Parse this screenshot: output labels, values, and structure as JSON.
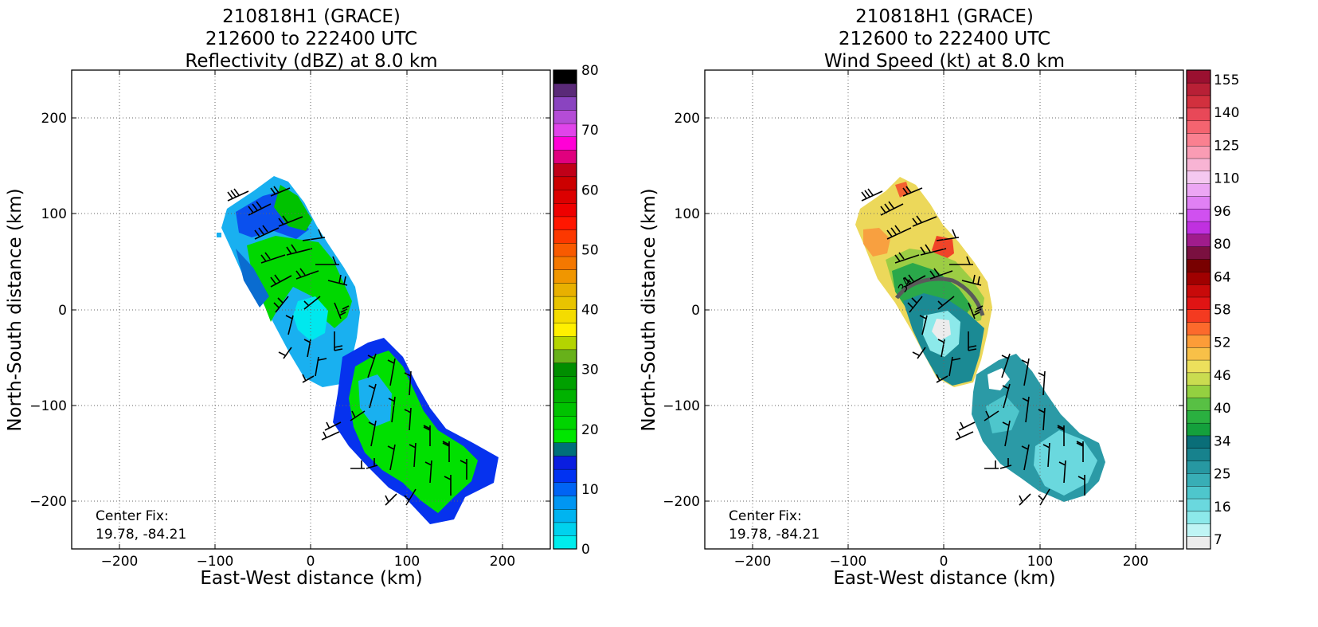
{
  "panels": [
    {
      "id": "reflectivity",
      "title_lines": [
        "210818H1 (GRACE)",
        "212600 to 222400 UTC",
        "Reflectivity (dBZ) at 8.0 km"
      ],
      "center_fix": [
        "Center Fix:",
        "19.78, -84.21"
      ],
      "colorbar": {
        "min": 0,
        "max": 80,
        "step": 2.5,
        "tick_values": [
          0,
          10,
          20,
          30,
          40,
          50,
          60,
          70,
          80
        ],
        "tick_labels": [
          "0",
          "10",
          "20",
          "30",
          "40",
          "50",
          "60",
          "70",
          "80"
        ],
        "colors": [
          "#00ecec",
          "#00d2ee",
          "#00b4f0",
          "#0096f2",
          "#0064f4",
          "#0032f2",
          "#0a1ee0",
          "#00707a",
          "#00e600",
          "#00d400",
          "#00c200",
          "#00b200",
          "#00a000",
          "#008e00",
          "#67b11a",
          "#b4d400",
          "#fff000",
          "#f4dc00",
          "#e8c400",
          "#e8b000",
          "#f09600",
          "#f47800",
          "#f85a00",
          "#fc3800",
          "#ff1600",
          "#ee0000",
          "#dc0000",
          "#cc0000",
          "#c00018",
          "#e0007e",
          "#ff00d6",
          "#e044ea",
          "#b44cd6",
          "#8a44c0",
          "#5a2a78",
          "#000000"
        ]
      }
    },
    {
      "id": "wind",
      "title_lines": [
        "210818H1 (GRACE)",
        "212600 to 222400 UTC",
        "Wind Speed (kt) at 8.0 km"
      ],
      "center_fix": [
        "Center Fix:",
        "19.78, -84.21"
      ],
      "contour_label": "34",
      "colorbar": {
        "tick_labels": [
          "7",
          "16",
          "25",
          "34",
          "40",
          "46",
          "52",
          "58",
          "64",
          "80",
          "96",
          "110",
          "125",
          "140",
          "155"
        ],
        "colors": [
          "#ececec",
          "#bff4f4",
          "#8ce9ea",
          "#6ad8de",
          "#4ec6cc",
          "#38aeb6",
          "#2798a2",
          "#17828d",
          "#0a6e78",
          "#14a03c",
          "#2ab040",
          "#58c044",
          "#94d040",
          "#cadc50",
          "#ece05c",
          "#f8c048",
          "#fc9c38",
          "#fc6a2c",
          "#f43a20",
          "#e01414",
          "#c80a0a",
          "#a00000",
          "#780000",
          "#7a1040",
          "#a01c8c",
          "#c030e0",
          "#d050f0",
          "#e080f4",
          "#eca6f4",
          "#f4c8f0",
          "#f8b4d4",
          "#fa9cb4",
          "#fa8090",
          "#f46470",
          "#e84858",
          "#d2303e",
          "#b82036",
          "#9a1030"
        ]
      }
    }
  ],
  "chart_data": [
    {
      "type": "heatmap",
      "title": "210818H1 (GRACE) 212600 to 222400 UTC Reflectivity (dBZ) at 8.0 km",
      "xlabel": "East-West distance (km)",
      "ylabel": "North-South distance (km)",
      "xlim": [
        -250,
        250
      ],
      "ylim": [
        -250,
        250
      ],
      "xticks": [
        -200,
        -100,
        0,
        100,
        200
      ],
      "yticks": [
        -200,
        -100,
        0,
        100,
        200
      ],
      "xtick_labels": [
        "−200",
        "−100",
        "0",
        "100",
        "200"
      ],
      "ytick_labels": [
        "−200",
        "−100",
        "0",
        "100",
        "200"
      ],
      "grid": true,
      "units": "dBZ",
      "colorbar_range": [
        0,
        80
      ],
      "annotation": "Center Fix:\n19.78, -84.21"
    },
    {
      "type": "heatmap",
      "title": "210818H1 (GRACE) 212600 to 222400 UTC Wind Speed (kt) at 8.0 km",
      "xlabel": "East-West distance (km)",
      "ylabel": "North-South distance (km)",
      "xlim": [
        -250,
        250
      ],
      "ylim": [
        -250,
        250
      ],
      "xticks": [
        -200,
        -100,
        0,
        100,
        200
      ],
      "yticks": [
        -200,
        -100,
        0,
        100,
        200
      ],
      "xtick_labels": [
        "−200",
        "−100",
        "0",
        "100",
        "200"
      ],
      "ytick_labels": [
        "−200",
        "−100",
        "0",
        "100",
        "200"
      ],
      "grid": true,
      "units": "kt",
      "colorbar_ticks": [
        7,
        16,
        25,
        34,
        40,
        46,
        52,
        58,
        64,
        80,
        96,
        110,
        125,
        140,
        155
      ],
      "contour_levels": [
        34
      ],
      "annotation": "Center Fix:\n19.78, -84.21"
    }
  ]
}
